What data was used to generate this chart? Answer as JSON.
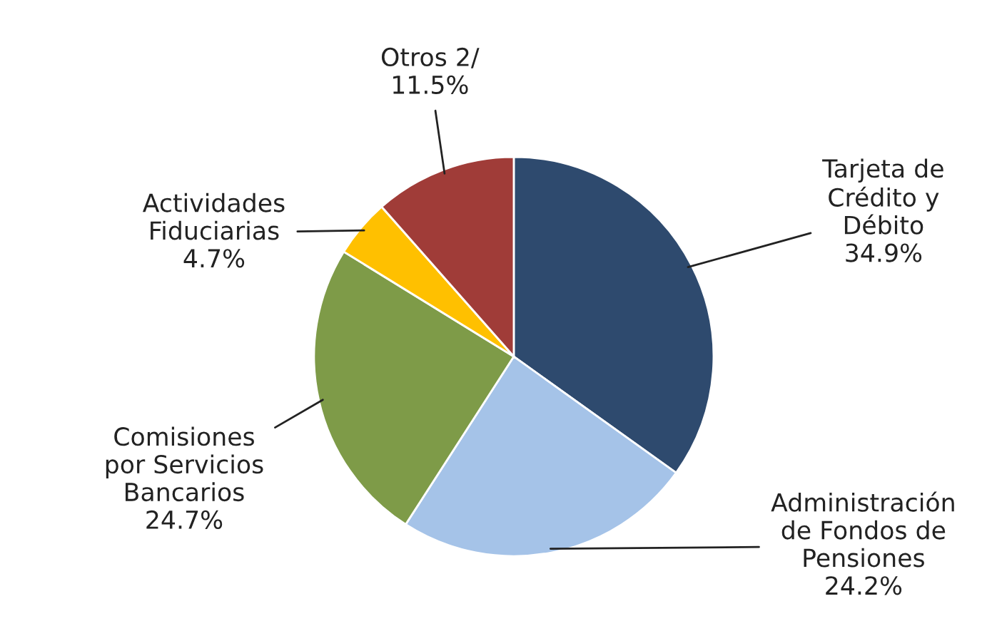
{
  "chart_data": {
    "type": "pie",
    "categories": [
      "Tarjeta de\nCrédito y\nDébito",
      "Administración\nde Fondos de\nPensiones",
      "Comisiones\npor Servicios\nBancarios",
      "Actividades\nFiduciarias",
      "Otros 2/"
    ],
    "values": [
      34.9,
      24.2,
      24.7,
      4.7,
      11.5
    ],
    "value_labels": [
      "34.9%",
      "24.2%",
      "24.7%",
      "4.7%",
      "11.5%"
    ],
    "colors": [
      "#2e4a6e",
      "#a5c3e8",
      "#7e9b48",
      "#ffc000",
      "#a03c38"
    ],
    "legend": false
  }
}
